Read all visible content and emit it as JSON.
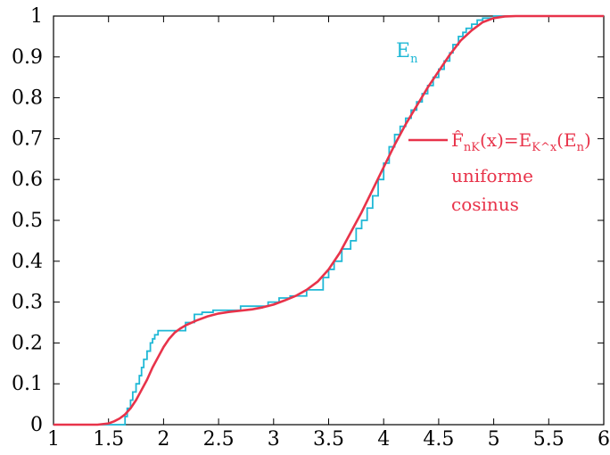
{
  "colors": {
    "empirical": "#1fb8d6",
    "smooth": "#e8334a",
    "axis": "#000000",
    "background": "#ffffff"
  },
  "chart_data": {
    "type": "line",
    "title": "",
    "xlabel": "",
    "ylabel": "",
    "xlim": [
      1,
      6
    ],
    "ylim": [
      0,
      1
    ],
    "x_ticks": [
      1,
      1.5,
      2,
      2.5,
      3,
      3.5,
      4,
      4.5,
      5,
      5.5,
      6
    ],
    "x_tick_labels": [
      "1",
      "1.5",
      "2",
      "2.5",
      "3",
      "3.5",
      "4",
      "4.5",
      "5",
      "5.5",
      "6"
    ],
    "y_ticks": [
      0,
      0.1,
      0.2,
      0.3,
      0.4,
      0.5,
      0.6,
      0.7,
      0.8,
      0.9,
      1
    ],
    "y_tick_labels": [
      "0",
      "0.1",
      "0.2",
      "0.3",
      "0.4",
      "0.5",
      "0.6",
      "0.7",
      "0.8",
      "0.9",
      "1"
    ],
    "grid": false,
    "legend_position": "right",
    "series": [
      {
        "name": "E",
        "name_sub": "n",
        "style": "step",
        "x": [
          1.0,
          1.65,
          1.67,
          1.7,
          1.72,
          1.75,
          1.78,
          1.8,
          1.82,
          1.85,
          1.88,
          1.9,
          1.92,
          1.95,
          1.98,
          2.0,
          2.05,
          2.2,
          2.28,
          2.35,
          2.45,
          2.7,
          2.85,
          2.95,
          3.05,
          3.15,
          3.3,
          3.45,
          3.5,
          3.55,
          3.62,
          3.7,
          3.75,
          3.8,
          3.85,
          3.9,
          3.95,
          4.0,
          4.05,
          4.1,
          4.15,
          4.2,
          4.25,
          4.3,
          4.35,
          4.4,
          4.45,
          4.5,
          4.55,
          4.6,
          4.63,
          4.68,
          4.72,
          4.75,
          4.8,
          4.85,
          4.9,
          5.0,
          5.1,
          6.0
        ],
        "y": [
          0.0,
          0.02,
          0.04,
          0.06,
          0.08,
          0.1,
          0.12,
          0.14,
          0.16,
          0.18,
          0.2,
          0.21,
          0.22,
          0.23,
          0.23,
          0.23,
          0.23,
          0.25,
          0.27,
          0.275,
          0.28,
          0.29,
          0.29,
          0.3,
          0.31,
          0.315,
          0.33,
          0.36,
          0.38,
          0.4,
          0.43,
          0.45,
          0.48,
          0.5,
          0.53,
          0.56,
          0.6,
          0.64,
          0.68,
          0.71,
          0.73,
          0.75,
          0.77,
          0.79,
          0.81,
          0.83,
          0.85,
          0.87,
          0.89,
          0.91,
          0.93,
          0.95,
          0.96,
          0.97,
          0.98,
          0.99,
          0.995,
          1.0,
          1.0,
          1.0
        ]
      },
      {
        "name": "F̂",
        "name_sub": "nK",
        "name_suffix": "(x)=E",
        "name_suffix_sub": "K^x",
        "name_suffix_end": "(E",
        "name_suffix_end_sub": "n",
        "name_close": ")",
        "style": "line",
        "x": [
          1.0,
          1.4,
          1.5,
          1.55,
          1.6,
          1.65,
          1.7,
          1.75,
          1.8,
          1.85,
          1.9,
          1.95,
          2.0,
          2.05,
          2.1,
          2.15,
          2.2,
          2.3,
          2.4,
          2.5,
          2.6,
          2.7,
          2.8,
          2.9,
          3.0,
          3.1,
          3.2,
          3.3,
          3.4,
          3.5,
          3.6,
          3.7,
          3.8,
          3.9,
          4.0,
          4.1,
          4.2,
          4.3,
          4.4,
          4.5,
          4.6,
          4.7,
          4.8,
          4.9,
          5.0,
          5.1,
          5.2,
          5.5,
          6.0
        ],
        "y": [
          0.0,
          0.0,
          0.003,
          0.008,
          0.015,
          0.025,
          0.04,
          0.06,
          0.085,
          0.11,
          0.14,
          0.165,
          0.19,
          0.21,
          0.225,
          0.235,
          0.243,
          0.255,
          0.265,
          0.272,
          0.276,
          0.279,
          0.282,
          0.287,
          0.294,
          0.304,
          0.315,
          0.33,
          0.35,
          0.38,
          0.42,
          0.47,
          0.52,
          0.575,
          0.63,
          0.685,
          0.735,
          0.78,
          0.825,
          0.865,
          0.905,
          0.94,
          0.965,
          0.985,
          0.995,
          0.999,
          1.0,
          1.0,
          1.0
        ]
      }
    ],
    "legend_extra": [
      "uniforme",
      "cosinus"
    ]
  }
}
